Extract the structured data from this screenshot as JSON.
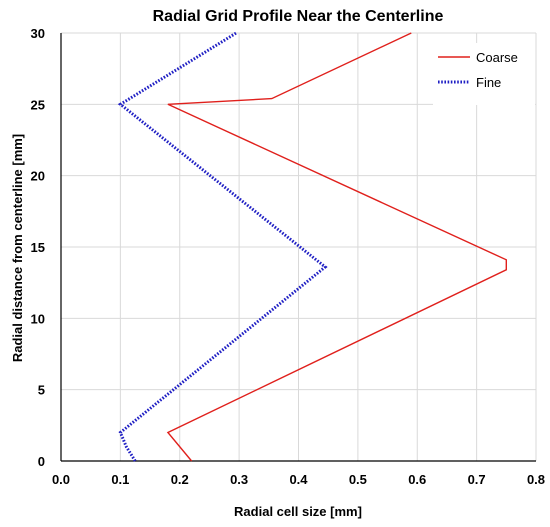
{
  "chart_data": {
    "type": "line",
    "title": "Radial Grid Profile Near the Centerline",
    "xlabel": "Radial cell size [mm]",
    "ylabel": "Radial distance from centerline [mm]",
    "xlim": [
      0.0,
      0.8
    ],
    "ylim": [
      0,
      30
    ],
    "xticks": [
      0.0,
      0.1,
      0.2,
      0.3,
      0.4,
      0.5,
      0.6,
      0.7,
      0.8
    ],
    "xtick_labels": [
      "0.0",
      "0.1",
      "0.2",
      "0.3",
      "0.4",
      "0.5",
      "0.6",
      "0.7",
      "0.8"
    ],
    "yticks": [
      0,
      5,
      10,
      15,
      20,
      25,
      30
    ],
    "ytick_labels": [
      "0",
      "5",
      "10",
      "15",
      "20",
      "25",
      "30"
    ],
    "grid": true,
    "legend_position": "top-right",
    "series": [
      {
        "name": "Coarse",
        "color": "#e0201c",
        "style": "solid",
        "x": [
          0.22,
          0.18,
          0.75,
          0.75,
          0.18,
          0.355,
          0.59
        ],
        "y": [
          0,
          2.0,
          13.4,
          14.1,
          25.0,
          25.4,
          30
        ]
      },
      {
        "name": "Fine",
        "color": "#1f1fc4",
        "style": "dotted",
        "x": [
          0.125,
          0.11,
          0.1,
          0.445,
          0.1,
          0.295
        ],
        "y": [
          0,
          1.0,
          2.0,
          13.6,
          25.0,
          30
        ]
      }
    ]
  }
}
